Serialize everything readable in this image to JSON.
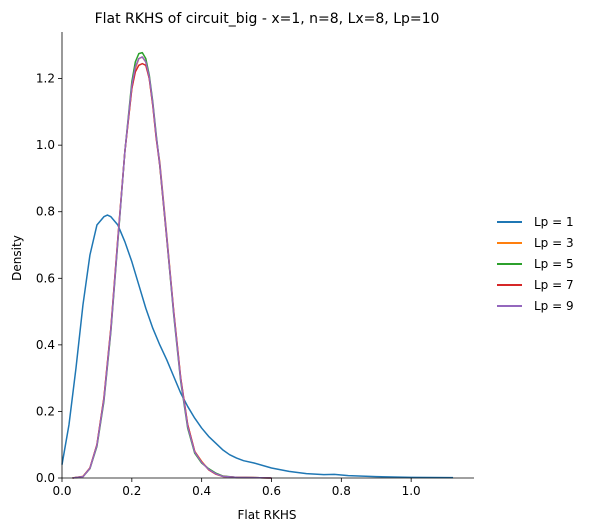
{
  "chart_data": {
    "type": "line",
    "title": "Flat RKHS of circuit_big - x=1, n=8, Lx=8, Lp=10",
    "xlabel": "Flat RKHS",
    "ylabel": "Density",
    "xlim": [
      0.0,
      1.18
    ],
    "ylim": [
      0.0,
      1.34
    ],
    "x_ticks": [
      0.0,
      0.2,
      0.4,
      0.6,
      0.8,
      1.0
    ],
    "x_tick_labels": [
      "0.0",
      "0.2",
      "0.4",
      "0.6",
      "0.8",
      "1.0"
    ],
    "y_ticks": [
      0.0,
      0.2,
      0.4,
      0.6,
      0.8,
      1.0,
      1.2
    ],
    "y_tick_labels": [
      "0.0",
      "0.2",
      "0.4",
      "0.6",
      "0.8",
      "1.0",
      "1.2"
    ],
    "grid": false,
    "legend_position": "right",
    "series": [
      {
        "name": "Lp = 1",
        "color": "#1f77b4",
        "x": [
          0.0,
          0.02,
          0.04,
          0.06,
          0.08,
          0.1,
          0.12,
          0.13,
          0.14,
          0.16,
          0.18,
          0.2,
          0.22,
          0.24,
          0.26,
          0.28,
          0.3,
          0.32,
          0.34,
          0.36,
          0.38,
          0.4,
          0.42,
          0.44,
          0.46,
          0.48,
          0.5,
          0.52,
          0.55,
          0.6,
          0.65,
          0.7,
          0.75,
          0.78,
          0.82,
          0.9,
          1.0,
          1.12
        ],
        "y": [
          0.04,
          0.16,
          0.33,
          0.52,
          0.67,
          0.76,
          0.785,
          0.79,
          0.785,
          0.76,
          0.71,
          0.65,
          0.58,
          0.51,
          0.45,
          0.4,
          0.355,
          0.305,
          0.255,
          0.215,
          0.18,
          0.15,
          0.125,
          0.105,
          0.085,
          0.07,
          0.06,
          0.052,
          0.045,
          0.03,
          0.02,
          0.013,
          0.01,
          0.011,
          0.007,
          0.004,
          0.002,
          0.001
        ]
      },
      {
        "name": "Lp = 3",
        "color": "#ff7f0e",
        "x": [
          0.03,
          0.06,
          0.08,
          0.1,
          0.12,
          0.14,
          0.16,
          0.18,
          0.2,
          0.21,
          0.22,
          0.23,
          0.24,
          0.25,
          0.26,
          0.27,
          0.28,
          0.3,
          0.32,
          0.34,
          0.36,
          0.38,
          0.4,
          0.42,
          0.44,
          0.46,
          0.5,
          0.55,
          0.6
        ],
        "y": [
          0.0,
          0.005,
          0.03,
          0.1,
          0.24,
          0.45,
          0.72,
          0.98,
          1.17,
          1.23,
          1.26,
          1.265,
          1.25,
          1.2,
          1.12,
          1.02,
          0.95,
          0.73,
          0.5,
          0.3,
          0.16,
          0.08,
          0.05,
          0.025,
          0.012,
          0.005,
          0.002,
          0.001,
          0.0
        ]
      },
      {
        "name": "Lp = 5",
        "color": "#2ca02c",
        "x": [
          0.03,
          0.06,
          0.08,
          0.1,
          0.12,
          0.14,
          0.16,
          0.18,
          0.2,
          0.21,
          0.22,
          0.23,
          0.24,
          0.25,
          0.26,
          0.27,
          0.28,
          0.3,
          0.32,
          0.34,
          0.36,
          0.38,
          0.4,
          0.42,
          0.44,
          0.46,
          0.5,
          0.55,
          0.6
        ],
        "y": [
          0.0,
          0.004,
          0.028,
          0.095,
          0.23,
          0.44,
          0.71,
          0.98,
          1.19,
          1.25,
          1.275,
          1.278,
          1.26,
          1.21,
          1.13,
          1.03,
          0.94,
          0.72,
          0.49,
          0.29,
          0.15,
          0.075,
          0.045,
          0.028,
          0.015,
          0.006,
          0.002,
          0.001,
          0.0
        ]
      },
      {
        "name": "Lp = 7",
        "color": "#d62728",
        "x": [
          0.03,
          0.06,
          0.08,
          0.1,
          0.12,
          0.14,
          0.16,
          0.18,
          0.2,
          0.21,
          0.22,
          0.23,
          0.24,
          0.25,
          0.26,
          0.27,
          0.28,
          0.3,
          0.32,
          0.34,
          0.36,
          0.38,
          0.4,
          0.42,
          0.44,
          0.46,
          0.5,
          0.55,
          0.6
        ],
        "y": [
          0.0,
          0.004,
          0.03,
          0.1,
          0.24,
          0.45,
          0.72,
          0.98,
          1.17,
          1.22,
          1.24,
          1.245,
          1.24,
          1.2,
          1.12,
          1.02,
          0.94,
          0.72,
          0.5,
          0.3,
          0.16,
          0.08,
          0.048,
          0.025,
          0.012,
          0.005,
          0.002,
          0.001,
          0.0
        ]
      },
      {
        "name": "Lp = 9",
        "color": "#9467bd",
        "x": [
          0.03,
          0.06,
          0.08,
          0.1,
          0.12,
          0.14,
          0.16,
          0.18,
          0.2,
          0.21,
          0.22,
          0.23,
          0.24,
          0.25,
          0.26,
          0.27,
          0.28,
          0.3,
          0.32,
          0.34,
          0.36,
          0.38,
          0.4,
          0.42,
          0.44,
          0.46,
          0.5,
          0.55,
          0.6
        ],
        "y": [
          0.0,
          0.004,
          0.029,
          0.098,
          0.235,
          0.445,
          0.715,
          0.98,
          1.18,
          1.235,
          1.26,
          1.265,
          1.25,
          1.205,
          1.125,
          1.025,
          0.945,
          0.725,
          0.495,
          0.295,
          0.155,
          0.078,
          0.047,
          0.026,
          0.013,
          0.005,
          0.002,
          0.001,
          0.0
        ]
      }
    ]
  }
}
